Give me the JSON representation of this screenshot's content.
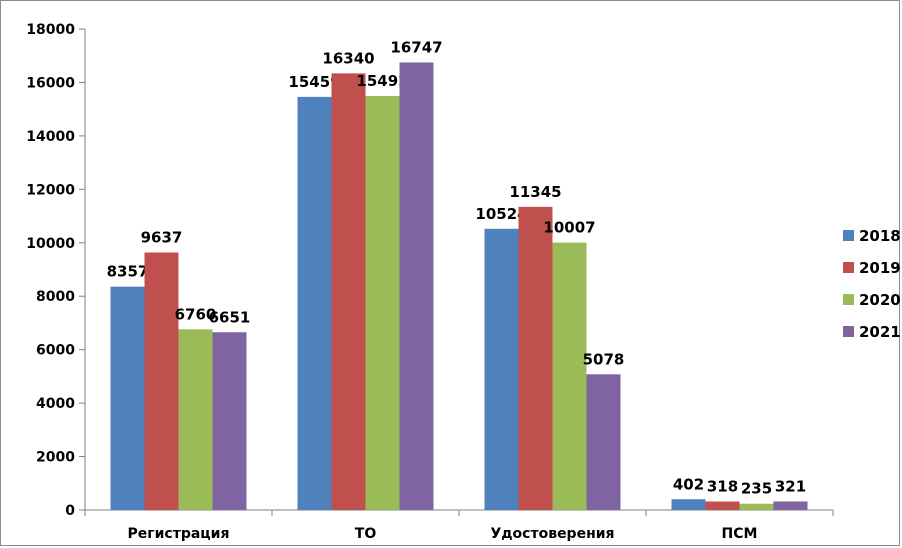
{
  "chart_data": {
    "type": "bar",
    "categories": [
      "Регистрация",
      "ТО",
      "Удостоверения",
      "ПСМ"
    ],
    "series": [
      {
        "name": "2018",
        "color": "#4f81bd",
        "values": [
          8357,
          15459,
          10524,
          402
        ]
      },
      {
        "name": "2019",
        "color": "#c0504d",
        "values": [
          9637,
          16340,
          11345,
          318
        ]
      },
      {
        "name": "2020",
        "color": "#9bbb59",
        "values": [
          6760,
          15492,
          10007,
          235
        ]
      },
      {
        "name": "2021",
        "color": "#8064a2",
        "values": [
          6651,
          16747,
          5078,
          321
        ]
      }
    ],
    "ylim": [
      0,
      18000
    ],
    "yticks": [
      "0",
      "2000",
      "4000",
      "6000",
      "8000",
      "10000",
      "12000",
      "14000",
      "16000",
      "18000"
    ],
    "grid": false,
    "legend": "right"
  }
}
